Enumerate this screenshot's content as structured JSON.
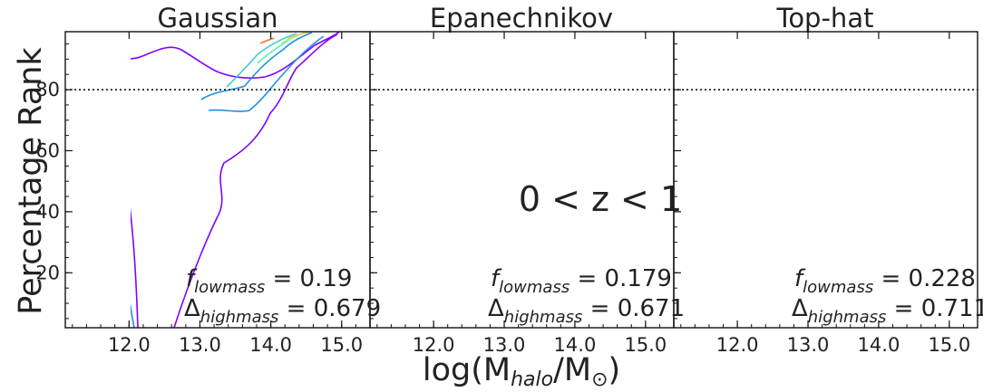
{
  "chart_data": {
    "type": "contour",
    "xlabel_main": "log(M",
    "xlabel_sub": "halo",
    "xlabel_tail": "/M",
    "xlabel_sun": "⊙",
    "xlabel_close": ")",
    "ylabel": "Percentage Rank",
    "xlim": [
      11.1,
      15.4
    ],
    "ylim": [
      2,
      99
    ],
    "xticks": [
      "12.0",
      "13.0",
      "14.0",
      "15.0"
    ],
    "xtick_values": [
      12.0,
      13.0,
      14.0,
      15.0
    ],
    "yticks": [
      "20",
      "40",
      "60",
      "80"
    ],
    "ytick_values": [
      20,
      40,
      60,
      80
    ],
    "threshold_line": 80,
    "redshift_label": "0 < z < 1",
    "contour_colors": [
      "#8000ff",
      "#1e90e6",
      "#3ad0d0",
      "#5cf0b0",
      "#b4f088",
      "#f0c060",
      "#ff7840",
      "#ff2a10"
    ],
    "panels": [
      {
        "title": "Gaussian",
        "f_sym": "f",
        "f_sub": "lowmass",
        "f_eq": " = 0.19",
        "d_sym": "Δ",
        "d_sub": "highmass",
        "d_eq": " = 0.679",
        "f_value": 0.19,
        "delta_value": 0.679
      },
      {
        "title": "Epanechnikov",
        "f_sym": "f",
        "f_sub": "lowmass",
        "f_eq": " = 0.179",
        "d_sym": "Δ",
        "d_sub": "highmass",
        "d_eq": " = 0.671",
        "f_value": 0.179,
        "delta_value": 0.671
      },
      {
        "title": "Top-hat",
        "f_sym": "f",
        "f_sub": "lowmass",
        "f_eq": " = 0.228",
        "d_sym": "Δ",
        "d_sub": "highmass",
        "d_eq": " = 0.711",
        "f_value": 0.228,
        "delta_value": 0.711
      }
    ]
  }
}
